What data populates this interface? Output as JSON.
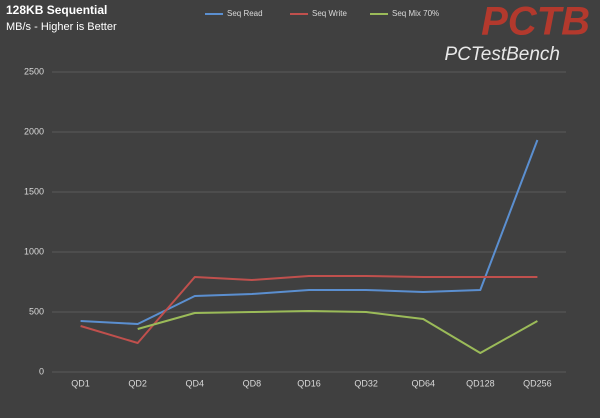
{
  "chart_data": {
    "type": "line",
    "title": "128KB Sequential",
    "subtitle": "MB/s - Higher is Better",
    "logo": "PCTB",
    "logo_subtitle": "PCTestBench",
    "categories": [
      "QD1",
      "QD2",
      "QD4",
      "QD8",
      "QD16",
      "QD32",
      "QD64",
      "QD128",
      "QD256"
    ],
    "series": [
      {
        "name": "Seq Read",
        "color": "#5b8fd0",
        "values": [
          425,
          400,
          633,
          650,
          683,
          683,
          667,
          683,
          1933
        ]
      },
      {
        "name": "Seq Write",
        "color": "#c0504d",
        "values": [
          383,
          242,
          792,
          767,
          800,
          800,
          792,
          792,
          792
        ]
      },
      {
        "name": "Seq Mix 70%",
        "color": "#9bbb59",
        "values": [
          null,
          358,
          492,
          500,
          508,
          500,
          442,
          158,
          425
        ]
      }
    ],
    "ylim": [
      0,
      2500
    ],
    "yticks": [
      0,
      500,
      1000,
      1500,
      2000,
      2500
    ],
    "grid": true,
    "legend": "top"
  }
}
